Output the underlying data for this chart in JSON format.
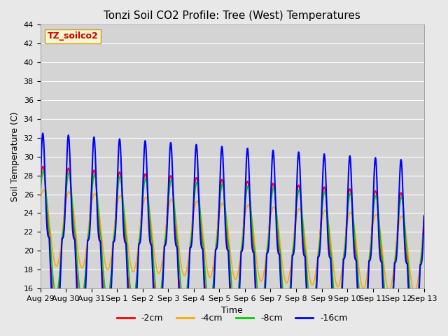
{
  "title": "Tonzi Soil CO2 Profile: Tree (West) Temperatures",
  "xlabel": "Time",
  "ylabel": "Soil Temperature (C)",
  "ylim": [
    16,
    44
  ],
  "yticks": [
    16,
    18,
    20,
    22,
    24,
    26,
    28,
    30,
    32,
    34,
    36,
    38,
    40,
    42,
    44
  ],
  "legend_label": "TZ_soilco2",
  "series_labels": [
    "-2cm",
    "-4cm",
    "-8cm",
    "-16cm"
  ],
  "series_colors": [
    "#ff0000",
    "#ffa500",
    "#00cc00",
    "#0000ff"
  ],
  "series_linewidths": [
    1.2,
    1.2,
    1.2,
    1.5
  ],
  "bg_color": "#e8e8e8",
  "plot_bg_color": "#d4d4d4",
  "grid_color": "#ffffff",
  "n_days": 15,
  "n_points_per_day": 288,
  "tick_labels": [
    "Aug 29",
    "Aug 30",
    "Aug 31",
    "Sep 1",
    "Sep 2",
    "Sep 3",
    "Sep 4",
    "Sep 5",
    "Sep 6",
    "Sep 7",
    "Sep 8",
    "Sep 9",
    "Sep 10",
    "Sep 11",
    "Sep 12",
    "Sep 13"
  ],
  "figsize": [
    6.4,
    4.8
  ],
  "dpi": 100
}
